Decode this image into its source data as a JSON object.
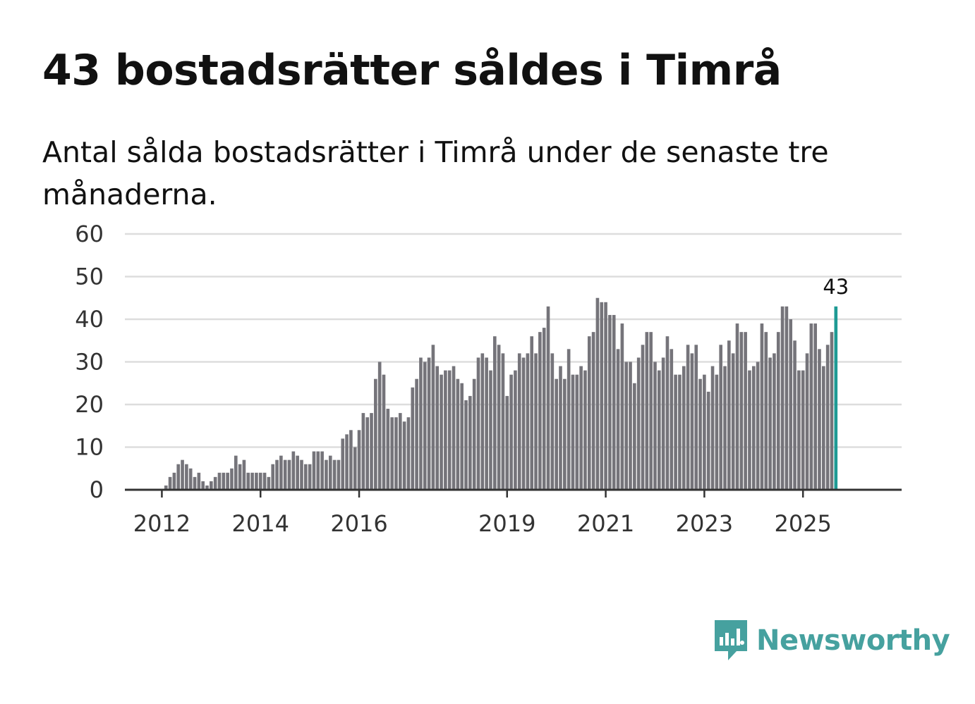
{
  "title": "43 bostadsrätter såldes i Timrå",
  "subtitle": "Antal sålda bostadsrätter i Timrå under de senaste tre månaderna.",
  "brand": {
    "name": "Newsworthy"
  },
  "colors": {
    "bar": "#75747a",
    "highlight": "#1e9a94",
    "grid": "#dddddd",
    "axis": "#333333",
    "brand": "#46a19f"
  },
  "chart_data": {
    "type": "bar",
    "title": "43 bostadsrätter såldes i Timrå",
    "subtitle": "Antal sålda bostadsrätter i Timrå under de senaste tre månaderna.",
    "xlabel": "",
    "ylabel": "",
    "ylim": [
      0,
      60
    ],
    "yticks": [
      "0",
      "10",
      "20",
      "30",
      "40",
      "50",
      "60"
    ],
    "xlim_months": [
      -9,
      180
    ],
    "first_bar_month": 0,
    "month_ticks": [
      {
        "label": "2012",
        "month": 0
      },
      {
        "label": "2014",
        "month": 24
      },
      {
        "label": "2016",
        "month": 48
      },
      {
        "label": "2019",
        "month": 84
      },
      {
        "label": "2021",
        "month": 108
      },
      {
        "label": "2023",
        "month": 132
      },
      {
        "label": "2025",
        "month": 156
      }
    ],
    "values": [
      0,
      1,
      3,
      4,
      6,
      7,
      6,
      5,
      3,
      4,
      2,
      1,
      2,
      3,
      4,
      4,
      4,
      5,
      8,
      6,
      7,
      4,
      4,
      4,
      4,
      4,
      3,
      6,
      7,
      8,
      7,
      7,
      9,
      8,
      7,
      6,
      6,
      9,
      9,
      9,
      7,
      8,
      7,
      7,
      12,
      13,
      14,
      10,
      14,
      18,
      17,
      18,
      26,
      30,
      27,
      19,
      17,
      17,
      18,
      16,
      17,
      24,
      26,
      31,
      30,
      31,
      34,
      29,
      27,
      28,
      28,
      29,
      26,
      25,
      21,
      22,
      26,
      31,
      32,
      31,
      28,
      36,
      34,
      32,
      22,
      27,
      28,
      32,
      31,
      32,
      36,
      32,
      37,
      38,
      43,
      32,
      26,
      29,
      26,
      33,
      27,
      27,
      29,
      28,
      36,
      37,
      45,
      44,
      44,
      41,
      41,
      33,
      39,
      30,
      30,
      25,
      31,
      34,
      37,
      37,
      30,
      28,
      31,
      36,
      33,
      27,
      27,
      29,
      34,
      32,
      34,
      26,
      27,
      23,
      29,
      27,
      34,
      29,
      35,
      32,
      39,
      37,
      37,
      28,
      29,
      30,
      39,
      37,
      31,
      32,
      37,
      43,
      43,
      40,
      35,
      28,
      28,
      32,
      39,
      39,
      33,
      29,
      34,
      37,
      43
    ],
    "highlight": {
      "index": 164,
      "value": 43,
      "label": "43"
    }
  }
}
